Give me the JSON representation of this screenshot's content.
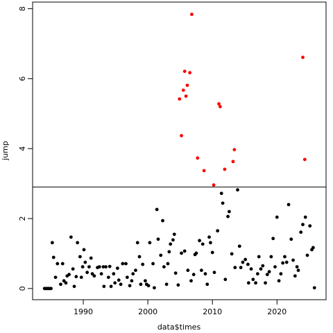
{
  "chart_data": {
    "type": "scatter",
    "x_label": "data$times",
    "y_label": "jump",
    "xlim": [
      1982.15,
      2027.6
    ],
    "ylim": [
      -0.32,
      8.19
    ],
    "xticks": [
      1990,
      2000,
      2010,
      2020
    ],
    "yticks": [
      0,
      2,
      4,
      6,
      8
    ],
    "hline": 2.9,
    "series": [
      {
        "color": "#000000",
        "x": [
          1984.0,
          1984.2,
          1984.4,
          1984.6,
          1984.8,
          1985.0,
          1985.2,
          1985.4,
          1985.7,
          1986.0,
          1986.5,
          1986.8,
          1987.0,
          1987.3,
          1987.5,
          1987.8,
          1988.1,
          1988.4,
          1988.6,
          1988.9,
          1989.1,
          1989.5,
          1989.7,
          1989.9,
          1990.1,
          1990.3,
          1990.6,
          1990.9,
          1991.2,
          1991.4,
          1991.7,
          1992.2,
          1992.5,
          1992.8,
          1993.1,
          1993.2,
          1993.5,
          1993.9,
          1994.1,
          1994.3,
          1994.7,
          1994.9,
          1995.3,
          1995.5,
          1995.8,
          1996.1,
          1996.6,
          1996.8,
          1997.2,
          1997.5,
          1997.7,
          1998.1,
          1998.4,
          1998.7,
          1998.9,
          1999.2,
          1999.6,
          1999.8,
          2000.1,
          2000.3,
          2000.8,
          2001.0,
          2001.4,
          2001.6,
          2002.0,
          2002.3,
          2002.5,
          2002.9,
          2003.1,
          2003.3,
          2003.5,
          2003.9,
          2004.1,
          2004.3,
          2004.7,
          2005.2,
          2005.7,
          2006.2,
          2006.7,
          2007.1,
          2007.3,
          2007.5,
          2008.0,
          2008.3,
          2008.5,
          2008.9,
          2009.2,
          2009.5,
          2009.7,
          2010.0,
          2010.3,
          2010.8,
          2011.4,
          2011.6,
          2012.0,
          2012.4,
          2012.6,
          2013.0,
          2013.5,
          2013.9,
          2014.2,
          2014.4,
          2014.7,
          2015.1,
          2015.5,
          2015.6,
          2016.0,
          2016.3,
          2016.7,
          2017.0,
          2017.2,
          2017.5,
          2017.8,
          2018.2,
          2018.5,
          2018.8,
          2019.1,
          2019.4,
          2019.7,
          2020.0,
          2020.3,
          2020.6,
          2020.9,
          2021.2,
          2021.5,
          2021.8,
          2022.2,
          2022.5,
          2022.8,
          2023.1,
          2023.3,
          2023.7,
          2024.0,
          2024.4,
          2024.7,
          2025.1,
          2025.4,
          2025.6,
          2025.8
        ],
        "values": [
          0,
          0,
          0,
          0,
          0,
          0,
          1.31,
          0.89,
          0.32,
          0.71,
          0.12,
          0.71,
          0.22,
          0.16,
          0.36,
          0.4,
          1.47,
          0.56,
          0.06,
          0.34,
          1.31,
          0.91,
          0.32,
          0.62,
          1.11,
          0.75,
          0.46,
          0.62,
          0.87,
          0.42,
          0.36,
          0.6,
          0.62,
          0.42,
          0.62,
          0.06,
          0.62,
          0.32,
          0.63,
          0.06,
          0.42,
          0.16,
          0.58,
          0.24,
          0.12,
          0.71,
          0.71,
          0.32,
          0.08,
          0.22,
          0.42,
          0.52,
          1.31,
          0.91,
          0.12,
          0.69,
          0.22,
          0.12,
          0.08,
          1.31,
          0.71,
          0.02,
          2.26,
          1.41,
          0.95,
          1.94,
          0.62,
          0.12,
          0.71,
          1.05,
          1.27,
          1.39,
          1.55,
          0.44,
          0.1,
          1.01,
          1.07,
          0.52,
          0.22,
          0.4,
          0.97,
          1.01,
          1.37,
          0.52,
          1.27,
          0.42,
          0.12,
          1.47,
          1.31,
          1.03,
          0.46,
          1.65,
          2.72,
          2.44,
          0.26,
          2.06,
          2.2,
          0.99,
          0.6,
          2.82,
          1.21,
          0.6,
          0.75,
          0.83,
          0.69,
          0.16,
          0.56,
          0.26,
          0.16,
          0.42,
          0.91,
          0.56,
          0.65,
          0.16,
          0.4,
          0.48,
          0.91,
          1.43,
          0.62,
          2.04,
          0.22,
          0.42,
          0.73,
          0.91,
          0.75,
          2.4,
          1.41,
          0.81,
          0.36,
          0.62,
          0.52,
          1.61,
          1.83,
          2.04,
          0.95,
          1.79,
          1.11,
          1.17,
          0.02
        ]
      },
      {
        "color": "#ff0000",
        "x": [
          2006.8,
          2005.7,
          2006.5,
          2006.1,
          2005.5,
          2005.9,
          2004.9,
          2011.0,
          2011.2,
          2005.2,
          2013.4,
          2007.7,
          2013.2,
          2011.9,
          2008.7,
          2010.2,
          2024.0,
          2024.3
        ],
        "values": [
          7.84,
          6.21,
          6.17,
          5.81,
          5.67,
          5.5,
          5.42,
          5.28,
          5.2,
          4.37,
          3.97,
          3.73,
          3.63,
          3.41,
          3.37,
          2.96,
          6.61,
          3.69
        ]
      }
    ]
  }
}
